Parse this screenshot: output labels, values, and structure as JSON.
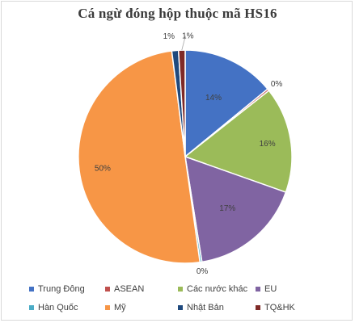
{
  "chart_data": {
    "type": "pie",
    "title": "Cá ngừ đóng hộp thuộc mã HS16",
    "categories": [
      "Trung Đông",
      "ASEAN",
      "Các nước khác",
      "EU",
      "Hàn Quốc",
      "Mỹ",
      "Nhật Bản",
      "TQ&HK"
    ],
    "values": [
      14,
      0.3,
      16,
      17,
      0.3,
      50,
      1,
      1
    ],
    "data_labels": [
      "14%",
      "0%",
      "16%",
      "17%",
      "0%",
      "50%",
      "1%",
      "1%"
    ],
    "colors": [
      "#4472c4",
      "#c0504d",
      "#9bbb59",
      "#8064a2",
      "#4bacc6",
      "#f79646",
      "#1f497d",
      "#7f2a27"
    ],
    "legend_position": "bottom"
  }
}
